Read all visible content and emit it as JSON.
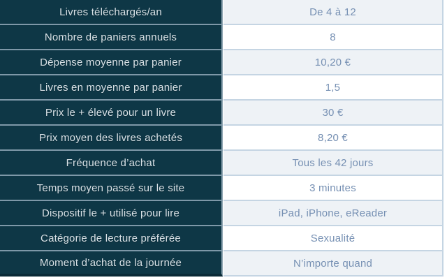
{
  "chart_data": {
    "type": "table",
    "columns": [
      "label",
      "value"
    ],
    "rows": [
      {
        "label": "Livres téléchargés/an",
        "value": "De 4 à 12"
      },
      {
        "label": "Nombre de paniers annuels",
        "value": "8"
      },
      {
        "label": "Dépense moyenne par panier",
        "value": "10,20 €"
      },
      {
        "label": "Livres en moyenne par panier",
        "value": "1,5"
      },
      {
        "label": "Prix le + élevé pour un livre",
        "value": "30 €"
      },
      {
        "label": "Prix moyen des livres achetés",
        "value": "8,20 €"
      },
      {
        "label": "Fréquence d’achat",
        "value": "Tous les 42 jours"
      },
      {
        "label": "Temps moyen passé sur le site",
        "value": "3 minutes"
      },
      {
        "label": "Dispositif le + utilisé pour lire",
        "value": "iPad, iPhone, eReader"
      },
      {
        "label": "Catégorie de lecture préférée",
        "value": "Sexualité"
      },
      {
        "label": "Moment d’achat de la journée",
        "value": "N’importe quand"
      }
    ],
    "layout_hints": {
      "row_count": 11,
      "value_row_alternation": "odd rows light, even rows white",
      "grid": "horizontal separators both columns"
    },
    "colors": {
      "label_cell_background": "#0e3746",
      "label_text": "#d8e1e6",
      "label_separator": "#7e98a8",
      "value_light_background": "#eef2f6",
      "value_white_background": "#ffffff",
      "value_text": "#7690b3",
      "value_separator": "#c5d5e3",
      "table_bottom_shadow": "#0a2a37"
    }
  }
}
